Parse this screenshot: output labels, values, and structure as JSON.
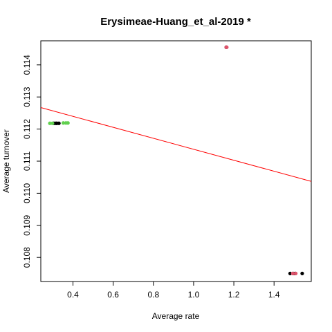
{
  "chart_data": {
    "type": "scatter",
    "title": "Erysimeae-Huang_et_al-2019 *",
    "xlabel": "Average rate",
    "ylabel": "Average turnover",
    "xlim": [
      0.24,
      1.585
    ],
    "ylim": [
      0.10725,
      0.11475
    ],
    "x_ticks": [
      0.4,
      0.6,
      0.8,
      1.0,
      1.2,
      1.4
    ],
    "x_tick_labels": [
      "0.4",
      "0.6",
      "0.8",
      "1.0",
      "1.2",
      "1.4"
    ],
    "y_ticks": [
      0.108,
      0.109,
      0.11,
      0.111,
      0.112,
      0.113,
      0.114
    ],
    "y_tick_labels": [
      "0.108",
      "0.109",
      "0.110",
      "0.111",
      "0.112",
      "0.113",
      "0.114"
    ],
    "grid": false,
    "series": [
      {
        "color": "#000000",
        "points": [
          [
            0.305,
            0.11218
          ],
          [
            0.315,
            0.11218
          ],
          [
            0.32,
            0.11218
          ],
          [
            0.33,
            0.11218
          ],
          [
            1.48,
            0.1075
          ],
          [
            1.495,
            0.1075
          ],
          [
            1.505,
            0.1075
          ],
          [
            1.54,
            0.1075
          ],
          [
            1.162,
            0.11455
          ]
        ]
      },
      {
        "color": "#61d04f",
        "points": [
          [
            0.285,
            0.11218
          ],
          [
            0.298,
            0.11218
          ],
          [
            0.352,
            0.11219
          ],
          [
            0.365,
            0.11219
          ],
          [
            0.375,
            0.11219
          ]
        ]
      },
      {
        "color": "#df536b",
        "points": [
          [
            1.162,
            0.11455
          ],
          [
            1.165,
            0.11455
          ],
          [
            1.493,
            0.1075
          ],
          [
            1.508,
            0.1075
          ]
        ]
      }
    ],
    "trend_line": {
      "color": "#ff0000",
      "start": [
        0.24,
        0.11267
      ],
      "end": [
        1.585,
        0.11037
      ]
    }
  }
}
